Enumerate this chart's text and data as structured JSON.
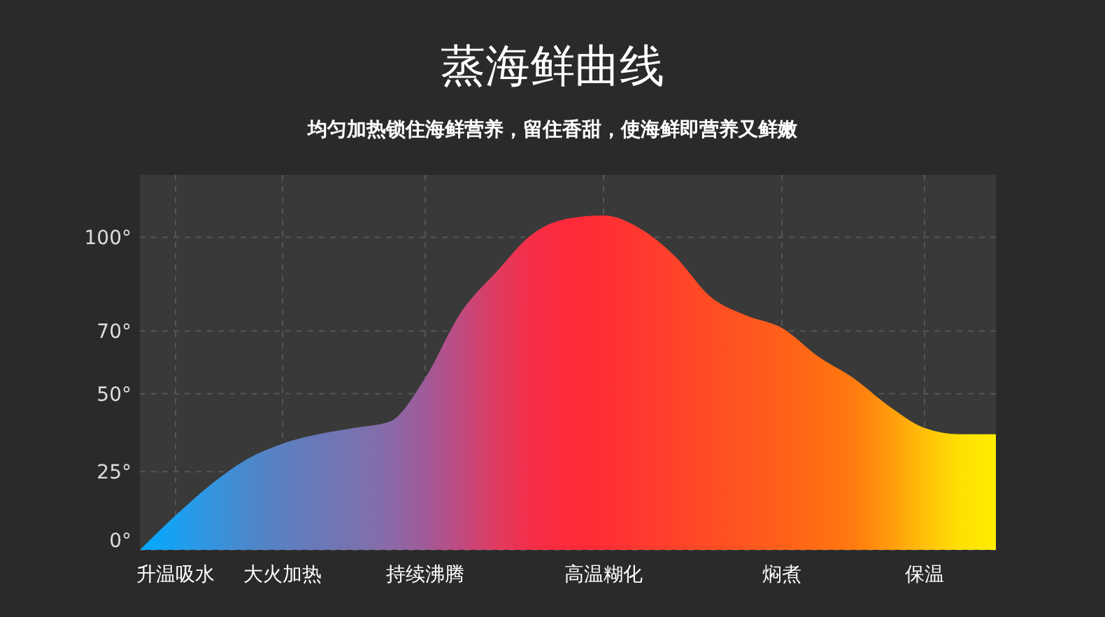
{
  "chart_data": {
    "type": "area",
    "title": "蒸海鲜曲线",
    "subtitle": "均匀加热锁住海鲜营养，留住香甜，使海鲜即营养又鲜嫩",
    "categories": [
      null,
      "升温吸水",
      null,
      null,
      "大火加热",
      null,
      null,
      null,
      "持续沸腾",
      null,
      null,
      null,
      null,
      "高温糊化",
      null,
      null,
      null,
      null,
      "焖煮",
      null,
      null,
      null,
      "保温",
      null,
      null
    ],
    "series": [
      {
        "values": [
          0,
          11,
          21,
          29,
          34,
          37,
          39,
          41,
          55,
          76,
          89,
          101,
          106,
          107,
          103,
          94,
          81,
          75,
          71,
          62,
          55,
          46,
          39,
          37,
          37
        ],
        "colors": [
          "#00aaff",
          "#1aa0f0",
          "#3494e0",
          "#4a88cc",
          "#5c7fc0",
          "#6a78b8",
          "#7873b0",
          "#8a6aa8",
          "#a05a98",
          "#c04a80",
          "#e03a60",
          "#f52e48",
          "#ff2a3a",
          "#ff2e34",
          "#ff3830",
          "#ff422a",
          "#ff4c24",
          "#ff5620",
          "#ff601a",
          "#ff6c14",
          "#ff7a10",
          "#ff9a0c",
          "#ffc008",
          "#ffe004",
          "#ffee00"
        ]
      }
    ],
    "ylim": [
      0,
      120
    ],
    "yticks": [
      {
        "value": 0,
        "label": "0°"
      },
      {
        "value": 25,
        "label": "25°"
      },
      {
        "value": 50,
        "label": "50°"
      },
      {
        "value": 70,
        "label": "70°"
      },
      {
        "value": 100,
        "label": "100°"
      }
    ],
    "grid": true
  }
}
